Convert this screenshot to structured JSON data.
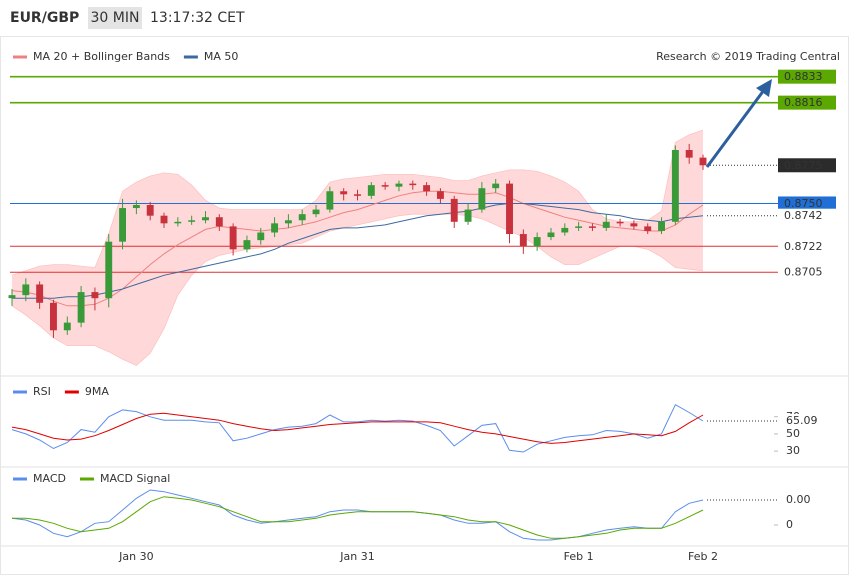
{
  "header": {
    "pair": "EUR/GBP",
    "timeframe": "30 MIN",
    "time": "13:17:32 CET"
  },
  "chart_data": [
    {
      "type": "candlestick",
      "source": "Research © 2019 Trading Central",
      "ylim": [
        0.8641,
        0.8857
      ],
      "up_color": "#3a9a3a",
      "down_color": "#c8323c",
      "band_color": "#ffd9d9",
      "open": [
        0.8688,
        0.869,
        0.8697,
        0.8685,
        0.8667,
        0.8672,
        0.8692,
        0.8688,
        0.8725,
        0.8747,
        0.8749,
        0.8742,
        0.8737,
        0.8738,
        0.8739,
        0.8741,
        0.8735,
        0.872,
        0.8726,
        0.8731,
        0.8737,
        0.8739,
        0.8743,
        0.8746,
        0.8758,
        0.8756,
        0.8755,
        0.8762,
        0.8761,
        0.8763,
        0.8762,
        0.8758,
        0.8753,
        0.8738,
        0.8746,
        0.876,
        0.8763,
        0.873,
        0.8722,
        0.8728,
        0.8731,
        0.8734,
        0.8735,
        0.8734,
        0.8738,
        0.8737,
        0.8735,
        0.8732,
        0.8738,
        0.8785,
        0.878
      ],
      "high": [
        0.8694,
        0.8701,
        0.8699,
        0.8687,
        0.8676,
        0.8696,
        0.8695,
        0.873,
        0.8753,
        0.8752,
        0.8751,
        0.8744,
        0.8741,
        0.8742,
        0.8745,
        0.8743,
        0.8737,
        0.8729,
        0.8734,
        0.8741,
        0.8743,
        0.8746,
        0.8749,
        0.8761,
        0.876,
        0.8759,
        0.8764,
        0.8764,
        0.8765,
        0.8765,
        0.8764,
        0.876,
        0.8755,
        0.875,
        0.8764,
        0.8766,
        0.8765,
        0.8733,
        0.8731,
        0.8734,
        0.8737,
        0.8738,
        0.8737,
        0.8743,
        0.874,
        0.8739,
        0.8737,
        0.8741,
        0.8788,
        0.8789,
        0.8782
      ],
      "low": [
        0.8683,
        0.8686,
        0.8681,
        0.8662,
        0.8664,
        0.8669,
        0.868,
        0.8682,
        0.872,
        0.8743,
        0.8739,
        0.8734,
        0.8735,
        0.8736,
        0.8737,
        0.8732,
        0.8716,
        0.8718,
        0.8723,
        0.8728,
        0.8734,
        0.8736,
        0.8741,
        0.8744,
        0.8752,
        0.8752,
        0.8753,
        0.8759,
        0.8758,
        0.8759,
        0.8755,
        0.875,
        0.8734,
        0.8736,
        0.8744,
        0.8757,
        0.8724,
        0.8717,
        0.8719,
        0.8726,
        0.8729,
        0.8732,
        0.8732,
        0.8732,
        0.8735,
        0.8733,
        0.873,
        0.873,
        0.8736,
        0.8776,
        0.8772
      ],
      "close": [
        0.869,
        0.8697,
        0.8685,
        0.8667,
        0.8672,
        0.8692,
        0.8688,
        0.8725,
        0.8747,
        0.8749,
        0.8742,
        0.8737,
        0.8738,
        0.8739,
        0.8741,
        0.8735,
        0.872,
        0.8726,
        0.8731,
        0.8737,
        0.8739,
        0.8743,
        0.8746,
        0.8758,
        0.8756,
        0.8755,
        0.8762,
        0.8761,
        0.8763,
        0.8762,
        0.8758,
        0.8753,
        0.8738,
        0.8746,
        0.876,
        0.8763,
        0.873,
        0.8722,
        0.8728,
        0.8731,
        0.8734,
        0.8735,
        0.8734,
        0.8738,
        0.8737,
        0.8735,
        0.8732,
        0.8738,
        0.8785,
        0.878,
        0.8775
      ],
      "series": [
        {
          "name": "MA 20 + Bollinger Bands",
          "color": "#f08080",
          "values": [
            0.8693,
            0.8692,
            0.869,
            0.8686,
            0.8683,
            0.8683,
            0.8684,
            0.8688,
            0.8694,
            0.8702,
            0.871,
            0.8717,
            0.8723,
            0.8728,
            0.8733,
            0.8735,
            0.8734,
            0.8733,
            0.8732,
            0.8733,
            0.8734,
            0.8736,
            0.8738,
            0.8741,
            0.8744,
            0.8746,
            0.8749,
            0.8752,
            0.8755,
            0.8757,
            0.8758,
            0.8758,
            0.8757,
            0.8756,
            0.8756,
            0.8757,
            0.8754,
            0.875,
            0.8747,
            0.8744,
            0.8741,
            0.8739,
            0.8737,
            0.8735,
            0.8734,
            0.8733,
            0.8732,
            0.8732,
            0.8736,
            0.8743,
            0.8749
          ],
          "upper": [
            0.8703,
            0.8706,
            0.8709,
            0.871,
            0.871,
            0.8709,
            0.8708,
            0.873,
            0.8758,
            0.8764,
            0.8768,
            0.877,
            0.8769,
            0.8762,
            0.8752,
            0.8747,
            0.8746,
            0.8746,
            0.8746,
            0.8746,
            0.8746,
            0.8746,
            0.8752,
            0.8764,
            0.8766,
            0.8767,
            0.8768,
            0.8769,
            0.8769,
            0.8769,
            0.8768,
            0.8767,
            0.8765,
            0.8765,
            0.8768,
            0.877,
            0.8772,
            0.8772,
            0.8771,
            0.8768,
            0.8764,
            0.8758,
            0.8746,
            0.874,
            0.8738,
            0.8738,
            0.8739,
            0.8745,
            0.879,
            0.8795,
            0.8798
          ],
          "lower": [
            0.8683,
            0.8677,
            0.867,
            0.8662,
            0.8657,
            0.8657,
            0.8657,
            0.8653,
            0.8648,
            0.8644,
            0.8652,
            0.8668,
            0.869,
            0.8703,
            0.8712,
            0.8716,
            0.8718,
            0.872,
            0.8721,
            0.8722,
            0.8723,
            0.8724,
            0.8728,
            0.8732,
            0.8734,
            0.8736,
            0.8738,
            0.874,
            0.8742,
            0.8743,
            0.8743,
            0.8743,
            0.8743,
            0.8742,
            0.874,
            0.8736,
            0.8732,
            0.8728,
            0.8722,
            0.8715,
            0.871,
            0.871,
            0.8714,
            0.8718,
            0.8722,
            0.8722,
            0.872,
            0.8715,
            0.8708,
            0.8707,
            0.8706
          ]
        },
        {
          "name": "MA 50",
          "color": "#3d6a9e",
          "values": [
            0.8688,
            0.8688,
            0.8688,
            0.8688,
            0.8689,
            0.8689,
            0.869,
            0.8692,
            0.8694,
            0.8697,
            0.87,
            0.8703,
            0.8705,
            0.8707,
            0.8709,
            0.8711,
            0.8713,
            0.8715,
            0.8717,
            0.872,
            0.8724,
            0.8727,
            0.873,
            0.8733,
            0.8734,
            0.8734,
            0.8735,
            0.8736,
            0.8738,
            0.874,
            0.8742,
            0.8743,
            0.8744,
            0.8745,
            0.8747,
            0.8749,
            0.875,
            0.875,
            0.8749,
            0.8748,
            0.8747,
            0.8746,
            0.8744,
            0.8743,
            0.8742,
            0.874,
            0.8739,
            0.8738,
            0.874,
            0.8741,
            0.8742
          ]
        }
      ],
      "levels": [
        {
          "value": 0.8833,
          "label": "0.8833",
          "color": "#5aa800",
          "boxed": true,
          "line": "solid"
        },
        {
          "value": 0.8816,
          "label": "0.8816",
          "color": "#5aa800",
          "boxed": true,
          "line": "solid"
        },
        {
          "value": 0.8775,
          "label": "0.8775",
          "color": "#2b2b2b",
          "boxed": true,
          "line": "dotted"
        },
        {
          "value": 0.875,
          "label": "0.8750",
          "color": "#1f6fd6",
          "boxed": true,
          "line": "solid"
        },
        {
          "value": 0.8742,
          "label": "0.8742",
          "color": "#3d6a9e",
          "boxed": false,
          "line": "dotted"
        },
        {
          "value": 0.8722,
          "label": "0.8722",
          "color": "#e03030",
          "boxed": false,
          "line": "solid"
        },
        {
          "value": 0.8705,
          "label": "0.8705",
          "color": "#e03030",
          "boxed": false,
          "line": "solid"
        }
      ]
    },
    {
      "type": "line",
      "ylim": [
        15,
        100
      ],
      "yticks": [
        30,
        50,
        70
      ],
      "current": {
        "value": 65.09,
        "label": "65.09",
        "color": "#4a78d0"
      },
      "series": [
        {
          "name": "RSI",
          "color": "#5b8def",
          "values": [
            55,
            50,
            43,
            33,
            40,
            55,
            52,
            70,
            78,
            76,
            70,
            66,
            66,
            66,
            64,
            63,
            42,
            45,
            50,
            55,
            58,
            59,
            62,
            72,
            64,
            64,
            66,
            65,
            66,
            65,
            60,
            54,
            36,
            48,
            60,
            62,
            31,
            29,
            38,
            42,
            46,
            48,
            49,
            54,
            53,
            50,
            45,
            50,
            84,
            75,
            65.09
          ]
        },
        {
          "name": "9MA",
          "color": "#e00000",
          "values": [
            58,
            55,
            50,
            45,
            43,
            44,
            48,
            54,
            61,
            68,
            73,
            74,
            72,
            70,
            68,
            66,
            62,
            59,
            56,
            54,
            55,
            57,
            59,
            61,
            62,
            63,
            64,
            64,
            64,
            64,
            64,
            63,
            59,
            55,
            52,
            50,
            47,
            44,
            41,
            39,
            40,
            42,
            44,
            46,
            48,
            50,
            49,
            48,
            53,
            63,
            72
          ]
        }
      ]
    },
    {
      "type": "line",
      "ylim": [
        -0.0012,
        0.003
      ],
      "yticks": [
        0
      ],
      "current": {
        "value": 0.0015,
        "label": "0.00",
        "color": "#4a78d0"
      },
      "categories": [
        null,
        null,
        null,
        null,
        null,
        null,
        null,
        null,
        null,
        "Jan 30",
        null,
        null,
        null,
        null,
        null,
        null,
        null,
        null,
        null,
        null,
        null,
        null,
        null,
        null,
        null,
        "Jan 31",
        null,
        null,
        null,
        null,
        null,
        null,
        null,
        null,
        null,
        null,
        null,
        null,
        null,
        null,
        null,
        "Feb 1",
        null,
        null,
        null,
        null,
        null,
        null,
        null,
        null,
        "Feb 2"
      ],
      "series": [
        {
          "name": "MACD",
          "color": "#5b8def",
          "values": [
            0.0004,
            0.0003,
            0,
            -0.0005,
            -0.0007,
            -0.0004,
            0.0001,
            0.0002,
            0.0009,
            0.0016,
            0.0021,
            0.002,
            0.0018,
            0.0016,
            0.0014,
            0.0012,
            0.0006,
            0.0003,
            0.0001,
            0.0002,
            0.0003,
            0.0004,
            0.0005,
            0.0008,
            0.0009,
            0.0009,
            0.0008,
            0.0008,
            0.0008,
            0.0008,
            0.0007,
            0.0006,
            0.0003,
            0.0001,
            0.0001,
            0.0002,
            -0.0004,
            -0.0008,
            -0.0009,
            -0.0009,
            -0.0008,
            -0.0007,
            -0.0005,
            -0.0003,
            -0.0002,
            -0.0001,
            -0.0002,
            -0.0002,
            0.0008,
            0.0013,
            0.0015
          ]
        },
        {
          "name": "MACD Signal",
          "color": "#5aa800",
          "values": [
            0.0004,
            0.0004,
            0.0003,
            0.0001,
            -0.0002,
            -0.0004,
            -0.0003,
            -0.0002,
            0.0002,
            0.0008,
            0.0014,
            0.0017,
            0.0016,
            0.0015,
            0.0013,
            0.0011,
            0.0008,
            0.0005,
            0.0002,
            0.0002,
            0.0002,
            0.0003,
            0.0004,
            0.0006,
            0.0007,
            0.0008,
            0.0008,
            0.0008,
            0.0008,
            0.0008,
            0.0007,
            0.0006,
            0.0005,
            0.0003,
            0.0002,
            0.0002,
            0,
            -0.0003,
            -0.0006,
            -0.0008,
            -0.0008,
            -0.0007,
            -0.0006,
            -0.0005,
            -0.0003,
            -0.0002,
            -0.0002,
            -0.0002,
            0.0001,
            0.0005,
            0.0009
          ]
        }
      ]
    }
  ]
}
